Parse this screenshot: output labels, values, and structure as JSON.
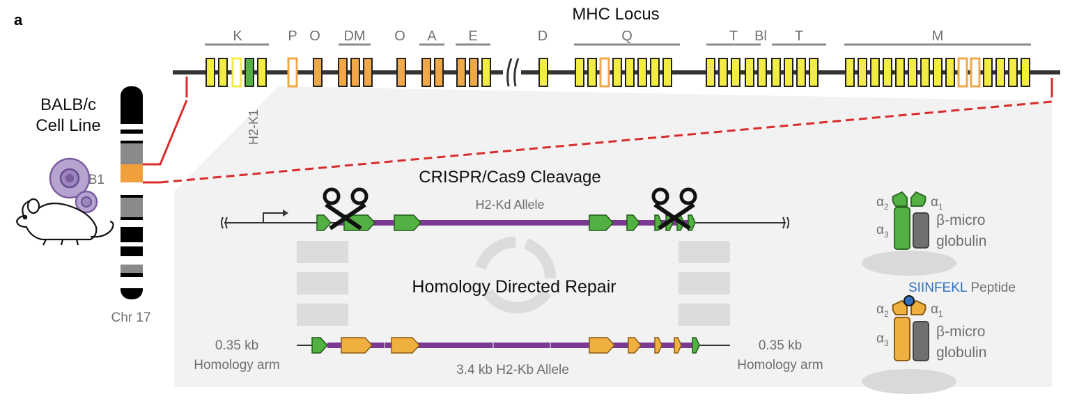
{
  "panel_label": "a",
  "locus": {
    "title": "MHC Locus",
    "region_labels": [
      "K",
      "P",
      "O",
      "DM",
      "O",
      "A",
      "E",
      "D",
      "Q",
      "T",
      "Bl",
      "T",
      "M"
    ],
    "gene_label": "H2-K1"
  },
  "chromosome": {
    "cell_line_line1": "BALB/c",
    "cell_line_line2": "Cell Line",
    "band_label": "B1",
    "name": "Chr 17"
  },
  "cleavage": {
    "title": "CRISPR/Cas9 Cleavage",
    "allele_label": "H2-Kd Allele"
  },
  "repair": {
    "title": "Homology Directed Repair",
    "left_arm_size": "0.35 kb",
    "left_arm_label": "Homology arm",
    "right_arm_size": "0.35 kb",
    "right_arm_label": "Homology arm",
    "allele_label": "3.4 kb H2-Kb Allele"
  },
  "proteins": {
    "alpha": "α",
    "sub1": "1",
    "sub2": "2",
    "sub3": "3",
    "beta_line1": "β-micro",
    "beta_line2": "globulin",
    "peptide_name": "SIINFEKL",
    "peptide_word": "Peptide"
  },
  "colors": {
    "yellow": "#f2ec45",
    "orange": "#f0a848",
    "green": "#53b043",
    "purple": "#7b3a92",
    "red_dash": "#d92b2b",
    "peptide_blue": "#2e6fc0",
    "gray_text": "#6f6f6f"
  }
}
